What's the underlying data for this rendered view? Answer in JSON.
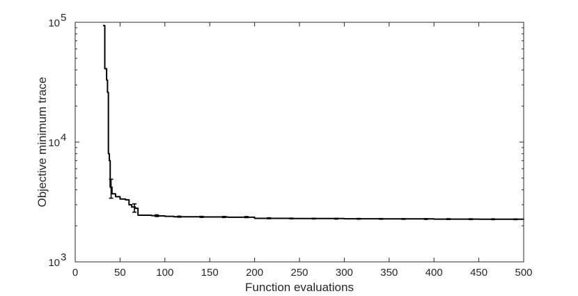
{
  "chart_data": {
    "type": "line",
    "title": "",
    "xlabel": "Function evaluations",
    "ylabel": "Objective minimum trace",
    "xscale": "linear",
    "yscale": "log",
    "xlim": [
      0,
      500
    ],
    "ylim": [
      1000,
      100000
    ],
    "grid": false,
    "legend": "none",
    "x_ticks": [
      0,
      50,
      100,
      150,
      200,
      250,
      300,
      350,
      400,
      450,
      500
    ],
    "y_ticks": [
      {
        "value": 1000,
        "base": "10",
        "exp": "3"
      },
      {
        "value": 10000,
        "base": "10",
        "exp": "4"
      },
      {
        "value": 100000,
        "base": "10",
        "exp": "5"
      }
    ],
    "series": [
      {
        "color": "#000000",
        "step": true,
        "points": [
          [
            31,
            94000
          ],
          [
            33,
            41000
          ],
          [
            35,
            33000
          ],
          [
            36,
            26000
          ],
          [
            37,
            8000
          ],
          [
            38,
            7000
          ],
          [
            39,
            4200
          ],
          [
            41,
            3700
          ],
          [
            45,
            3500
          ],
          [
            50,
            3350
          ],
          [
            56,
            3300
          ],
          [
            60,
            3000
          ],
          [
            63,
            2870
          ],
          [
            67,
            2800
          ],
          [
            70,
            2450
          ],
          [
            85,
            2430
          ],
          [
            90,
            2420
          ],
          [
            100,
            2400
          ],
          [
            110,
            2380
          ],
          [
            140,
            2370
          ],
          [
            170,
            2360
          ],
          [
            200,
            2310
          ],
          [
            240,
            2300
          ],
          [
            300,
            2290
          ],
          [
            340,
            2285
          ],
          [
            400,
            2275
          ],
          [
            450,
            2270
          ],
          [
            500,
            2265
          ]
        ]
      }
    ],
    "error_bars": [
      {
        "x": 40,
        "low": 3400,
        "high": 4900
      },
      {
        "x": 66,
        "low": 2600,
        "high": 3050
      },
      {
        "x": 91,
        "low": 2390,
        "high": 2470
      },
      {
        "x": 116,
        "low": 2360,
        "high": 2410
      },
      {
        "x": 141,
        "low": 2350,
        "high": 2400
      },
      {
        "x": 166,
        "low": 2345,
        "high": 2395
      },
      {
        "x": 191,
        "low": 2340,
        "high": 2390
      },
      {
        "x": 216,
        "low": 2290,
        "high": 2335
      },
      {
        "x": 241,
        "low": 2285,
        "high": 2320
      },
      {
        "x": 266,
        "low": 2280,
        "high": 2315
      },
      {
        "x": 291,
        "low": 2275,
        "high": 2310
      },
      {
        "x": 316,
        "low": 2272,
        "high": 2305
      },
      {
        "x": 341,
        "low": 2268,
        "high": 2302
      },
      {
        "x": 366,
        "low": 2265,
        "high": 2300
      },
      {
        "x": 391,
        "low": 2262,
        "high": 2298
      },
      {
        "x": 416,
        "low": 2258,
        "high": 2294
      },
      {
        "x": 441,
        "low": 2255,
        "high": 2290
      },
      {
        "x": 466,
        "low": 2252,
        "high": 2287
      },
      {
        "x": 491,
        "low": 2250,
        "high": 2284
      }
    ]
  }
}
